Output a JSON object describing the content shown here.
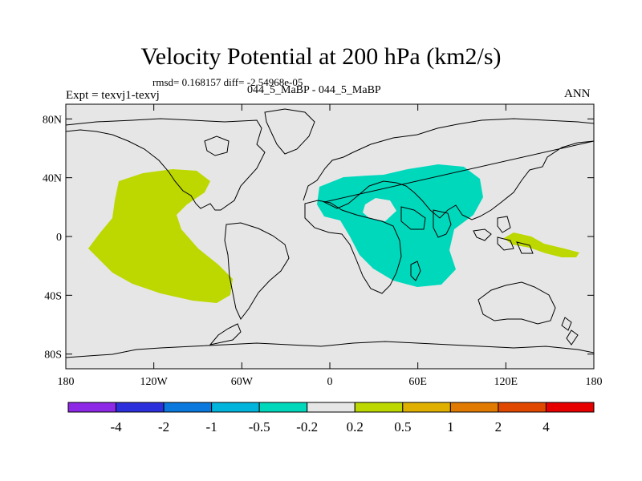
{
  "title": "Velocity Potential at 200 hPa (km2/s)",
  "stats_line": "rmsd= 0.168157 diff= -2.54968e-05",
  "experiment": "Expt = texvj1-texvj",
  "case_label": "044_5_MaBP - 044_5_MaBP",
  "season": "ANN",
  "map": {
    "projection": "cylindrical equidistant",
    "lon_range": [
      -180,
      180
    ],
    "lat_range": [
      -90,
      90
    ],
    "y_ticks": [
      {
        "value": 80,
        "label": "80N"
      },
      {
        "value": 40,
        "label": "40N"
      },
      {
        "value": 0,
        "label": "0"
      },
      {
        "value": -40,
        "label": "40S"
      },
      {
        "value": -80,
        "label": "80S"
      }
    ],
    "x_ticks": [
      {
        "value": -180,
        "label": "180"
      },
      {
        "value": -120,
        "label": "120W"
      },
      {
        "value": -60,
        "label": "60W"
      },
      {
        "value": 0,
        "label": "0"
      },
      {
        "value": 60,
        "label": "60E"
      },
      {
        "value": 120,
        "label": "120E"
      },
      {
        "value": 180,
        "label": "180"
      }
    ],
    "background_color": "#e6e6e6",
    "shaded_regions": [
      {
        "name": "eastern-pacific-positive-anomaly",
        "range": "0.2 to 0.5",
        "color": "#bcd800"
      },
      {
        "name": "africa-indian-ocean-negative-anomaly",
        "range": "-0.5 to -0.2",
        "color": "#00d8bc"
      },
      {
        "name": "western-pacific-positive-anomaly",
        "range": "0.2 to 0.5",
        "color": "#bcd800"
      }
    ]
  },
  "colorbar": {
    "colors": [
      "#8c28e6",
      "#2c30dc",
      "#0a78dc",
      "#00b4dc",
      "#00d8bc",
      "#e6e6e6",
      "#bcd800",
      "#e0b000",
      "#e07a00",
      "#e04800",
      "#e60000"
    ],
    "labels": [
      "-4",
      "-2",
      "-1",
      "-0.5",
      "-0.2",
      "0.2",
      "0.5",
      "1",
      "2",
      "4"
    ]
  }
}
